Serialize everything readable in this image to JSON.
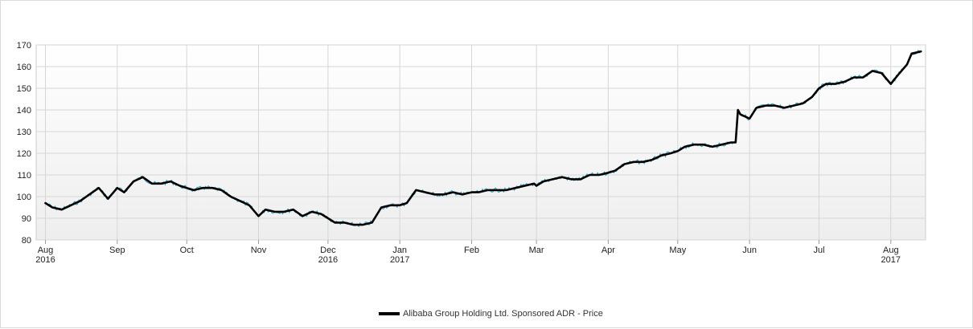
{
  "colors": {
    "main_line": "#000000",
    "detail_line": "#1fa7c9",
    "grid": "#d6d6d6",
    "plot_top": "#ffffff",
    "plot_bottom": "#eeeeee"
  },
  "chart_data": {
    "type": "line",
    "title": "",
    "xlabel": "",
    "ylabel": "",
    "ylim": [
      80,
      170
    ],
    "y_ticks": [
      80,
      90,
      100,
      110,
      120,
      130,
      140,
      150,
      160,
      170
    ],
    "x_range": [
      "2016-07-28",
      "2017-08-16"
    ],
    "x_ticks": [
      {
        "date": "2016-08-01",
        "label": "Aug",
        "sublabel": "2016"
      },
      {
        "date": "2016-09-01",
        "label": "Sep",
        "sublabel": ""
      },
      {
        "date": "2016-10-01",
        "label": "Oct",
        "sublabel": ""
      },
      {
        "date": "2016-11-01",
        "label": "Nov",
        "sublabel": ""
      },
      {
        "date": "2016-12-01",
        "label": "Dec",
        "sublabel": "2016"
      },
      {
        "date": "2017-01-01",
        "label": "Jan",
        "sublabel": "2017"
      },
      {
        "date": "2017-02-01",
        "label": "Feb",
        "sublabel": ""
      },
      {
        "date": "2017-03-01",
        "label": "Mar",
        "sublabel": ""
      },
      {
        "date": "2017-04-01",
        "label": "Apr",
        "sublabel": ""
      },
      {
        "date": "2017-05-01",
        "label": "May",
        "sublabel": ""
      },
      {
        "date": "2017-06-01",
        "label": "Jun",
        "sublabel": ""
      },
      {
        "date": "2017-07-01",
        "label": "Jul",
        "sublabel": ""
      },
      {
        "date": "2017-08-01",
        "label": "Aug",
        "sublabel": "2017"
      }
    ],
    "grid": true,
    "legend_position": "bottom-center",
    "series": [
      {
        "name": "Alibaba Group Holding Ltd. Sponsored ADR - Price",
        "x": [
          "2016-08-01",
          "2016-08-04",
          "2016-08-08",
          "2016-08-12",
          "2016-08-16",
          "2016-08-20",
          "2016-08-24",
          "2016-08-28",
          "2016-09-01",
          "2016-09-04",
          "2016-09-08",
          "2016-09-12",
          "2016-09-16",
          "2016-09-20",
          "2016-09-24",
          "2016-09-28",
          "2016-10-01",
          "2016-10-04",
          "2016-10-08",
          "2016-10-12",
          "2016-10-16",
          "2016-10-20",
          "2016-10-24",
          "2016-10-28",
          "2016-11-01",
          "2016-11-04",
          "2016-11-08",
          "2016-11-12",
          "2016-11-16",
          "2016-11-20",
          "2016-11-24",
          "2016-11-28",
          "2016-12-01",
          "2016-12-04",
          "2016-12-08",
          "2016-12-12",
          "2016-12-16",
          "2016-12-20",
          "2016-12-24",
          "2016-12-28",
          "2017-01-01",
          "2017-01-04",
          "2017-01-08",
          "2017-01-12",
          "2017-01-16",
          "2017-01-20",
          "2017-01-24",
          "2017-01-28",
          "2017-02-01",
          "2017-02-04",
          "2017-02-08",
          "2017-02-12",
          "2017-02-16",
          "2017-02-20",
          "2017-02-24",
          "2017-02-28",
          "2017-03-01",
          "2017-03-04",
          "2017-03-08",
          "2017-03-12",
          "2017-03-16",
          "2017-03-20",
          "2017-03-24",
          "2017-03-28",
          "2017-04-01",
          "2017-04-04",
          "2017-04-08",
          "2017-04-12",
          "2017-04-16",
          "2017-04-20",
          "2017-04-24",
          "2017-04-28",
          "2017-05-01",
          "2017-05-04",
          "2017-05-08",
          "2017-05-12",
          "2017-05-16",
          "2017-05-20",
          "2017-05-24",
          "2017-05-26",
          "2017-05-27",
          "2017-05-28",
          "2017-06-01",
          "2017-06-04",
          "2017-06-08",
          "2017-06-12",
          "2017-06-16",
          "2017-06-20",
          "2017-06-24",
          "2017-06-28",
          "2017-07-01",
          "2017-07-04",
          "2017-07-08",
          "2017-07-12",
          "2017-07-16",
          "2017-07-20",
          "2017-07-24",
          "2017-07-28",
          "2017-08-01",
          "2017-08-04",
          "2017-08-08",
          "2017-08-10",
          "2017-08-14"
        ],
        "y": [
          97,
          95,
          94,
          96,
          98,
          101,
          104,
          99,
          104,
          102,
          107,
          109,
          106,
          106,
          107,
          105,
          104,
          103,
          104,
          104,
          103,
          100,
          98,
          96,
          91,
          94,
          93,
          93,
          94,
          91,
          93,
          92,
          90,
          88,
          88,
          87,
          87,
          88,
          95,
          96,
          96,
          97,
          103,
          102,
          101,
          101,
          102,
          101,
          102,
          102,
          103,
          103,
          103,
          104,
          105,
          106,
          105,
          107,
          108,
          109,
          108,
          108,
          110,
          110,
          111,
          112,
          115,
          116,
          116,
          117,
          119,
          120,
          121,
          123,
          124,
          124,
          123,
          124,
          125,
          125,
          140,
          138,
          136,
          141,
          142,
          142,
          141,
          142,
          143,
          146,
          150,
          152,
          152,
          153,
          155,
          155,
          158,
          157,
          152,
          156,
          161,
          166,
          167
        ]
      }
    ]
  }
}
